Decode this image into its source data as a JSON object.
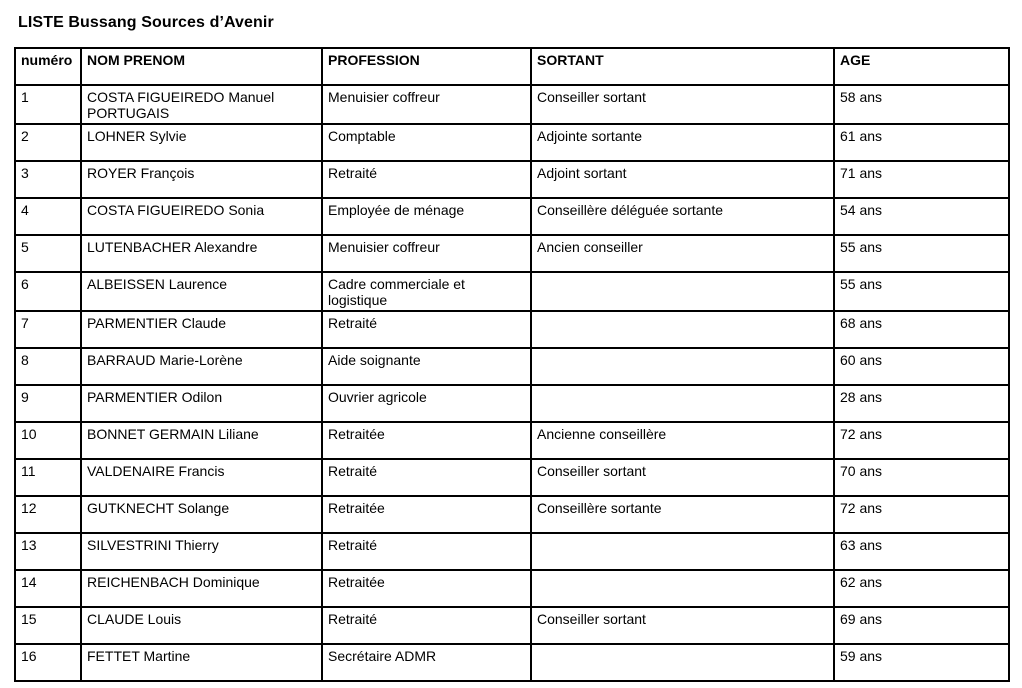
{
  "page": {
    "title": "LISTE Bussang Sources d’Avenir"
  },
  "table": {
    "headers": [
      "numéro",
      "NOM PRENOM",
      "PROFESSION",
      "SORTANT",
      "AGE"
    ],
    "rows": [
      {
        "numero": "1",
        "nom": "COSTA FIGUEIREDO Manuel PORTUGAIS",
        "profession": "Menuisier coffreur",
        "sortant": "Conseiller sortant",
        "age": "58 ans"
      },
      {
        "numero": "2",
        "nom": "LOHNER Sylvie",
        "profession": "Comptable",
        "sortant": "Adjointe sortante",
        "age": "61 ans"
      },
      {
        "numero": "3",
        "nom": "ROYER François",
        "profession": "Retraité",
        "sortant": "Adjoint sortant",
        "age": "71 ans"
      },
      {
        "numero": "4",
        "nom": "COSTA FIGUEIREDO Sonia",
        "profession": "Employée de ménage",
        "sortant": "Conseillère déléguée sortante",
        "age": "54 ans"
      },
      {
        "numero": "5",
        "nom": "LUTENBACHER Alexandre",
        "profession": "Menuisier coffreur",
        "sortant": "Ancien conseiller",
        "age": "55 ans"
      },
      {
        "numero": "6",
        "nom": "ALBEISSEN Laurence",
        "profession": "Cadre commerciale et logistique",
        "sortant": "",
        "age": "55 ans"
      },
      {
        "numero": "7",
        "nom": "PARMENTIER Claude",
        "profession": "Retraité",
        "sortant": "",
        "age": "68 ans"
      },
      {
        "numero": "8",
        "nom": "BARRAUD Marie-Lorène",
        "profession": "Aide soignante",
        "sortant": "",
        "age": "60 ans"
      },
      {
        "numero": "9",
        "nom": "PARMENTIER Odilon",
        "profession": "Ouvrier agricole",
        "sortant": "",
        "age": "28 ans"
      },
      {
        "numero": "10",
        "nom": "BONNET GERMAIN Liliane",
        "profession": "Retraitée",
        "sortant": "Ancienne conseillère",
        "age": "72 ans"
      },
      {
        "numero": "11",
        "nom": "VALDENAIRE Francis",
        "profession": "Retraité",
        "sortant": "Conseiller sortant",
        "age": "70 ans"
      },
      {
        "numero": "12",
        "nom": "GUTKNECHT Solange",
        "profession": "Retraitée",
        "sortant": "Conseillère sortante",
        "age": "72 ans"
      },
      {
        "numero": "13",
        "nom": "SILVESTRINI Thierry",
        "profession": "Retraité",
        "sortant": "",
        "age": "63 ans"
      },
      {
        "numero": "14",
        "nom": "REICHENBACH Dominique",
        "profession": "Retraitée",
        "sortant": "",
        "age": "62 ans"
      },
      {
        "numero": "15",
        "nom": "CLAUDE Louis",
        "profession": "Retraité",
        "sortant": "Conseiller sortant",
        "age": "69 ans"
      },
      {
        "numero": "16",
        "nom": "FETTET Martine",
        "profession": "Secrétaire ADMR",
        "sortant": "",
        "age": "59 ans"
      }
    ]
  }
}
